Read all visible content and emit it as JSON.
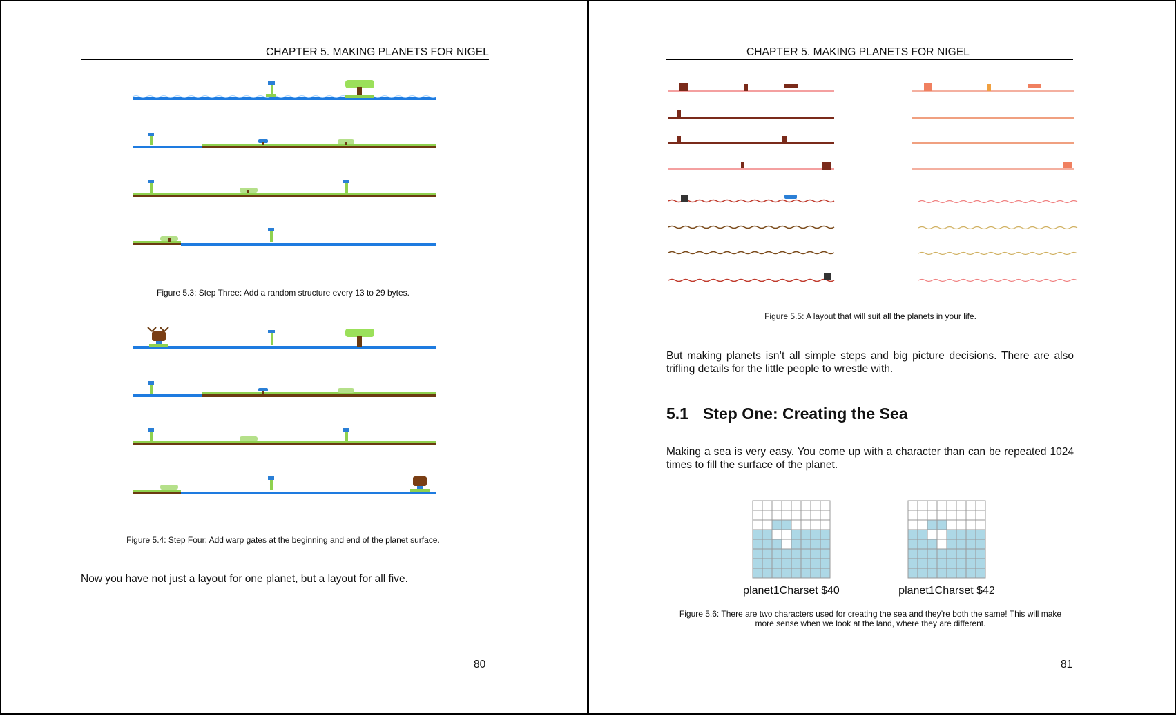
{
  "left_page": {
    "running_head": "CHAPTER 5.  MAKING PLANETS FOR NIGEL",
    "figure_53_caption": "Figure 5.3: Step Three: Add a random structure every 13 to 29 bytes.",
    "figure_54_caption": "Figure 5.4: Step Four: Add warp gates at the beginning and end of the planet surface.",
    "body_text": "Now you have not just a layout for one planet, but a layout for all five.",
    "page_number": "80"
  },
  "right_page": {
    "running_head": "CHAPTER 5.  MAKING PLANETS FOR NIGEL",
    "figure_55_caption": "Figure 5.5: A layout that will suit all the planets in your life.",
    "paragraph_1": "But making planets isn’t all simple steps and big picture decisions. There are also trifling details for the little people to wrestle with.",
    "section_number": "5.1",
    "section_title": "Step One: Creating the Sea",
    "paragraph_2": "Making a sea is very easy. You come up with a character than can be repeated 1024 times to fill the surface of the planet.",
    "grid_label_1": "planet1Charset $40",
    "grid_label_2": "planet1Charset $42",
    "figure_56_caption_line_1": "Figure 5.6: There are two characters used for creating the sea and they’re both the same! This will make",
    "figure_56_caption_line_2": "more sense when we look at the land, where they are different.",
    "page_number": "81"
  },
  "colors": {
    "sea": "#1e7be0",
    "grass": "#8fd14f",
    "soil": "#6b3a10",
    "tree_canopy": "#9be05a",
    "sea_cell": "#add8e6"
  }
}
